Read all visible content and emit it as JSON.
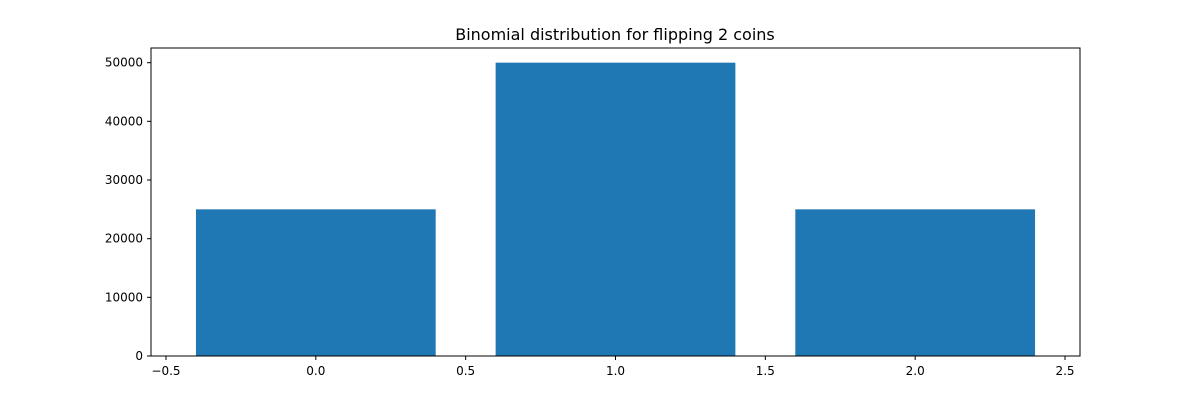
{
  "chart_data": {
    "type": "bar",
    "title": "Binomial distribution for flipping 2 coins",
    "xlabel": "",
    "ylabel": "",
    "x": [
      0,
      1,
      2
    ],
    "values": [
      25000,
      50000,
      25000
    ],
    "bar_width": 0.8,
    "xlim": [
      -0.55,
      2.55
    ],
    "ylim": [
      0,
      52500
    ],
    "xticks": [
      -0.5,
      0.0,
      0.5,
      1.0,
      1.5,
      2.0,
      2.5
    ],
    "xtick_labels": [
      "−0.5",
      "0.0",
      "0.5",
      "1.0",
      "1.5",
      "2.0",
      "2.5"
    ],
    "yticks": [
      0,
      10000,
      20000,
      30000,
      40000,
      50000
    ],
    "ytick_labels": [
      "0",
      "10000",
      "20000",
      "30000",
      "40000",
      "50000"
    ],
    "grid": false,
    "legend": "none",
    "colors": {
      "bar": "#1f77b4",
      "axes": "#000000",
      "background": "#ffffff"
    }
  }
}
